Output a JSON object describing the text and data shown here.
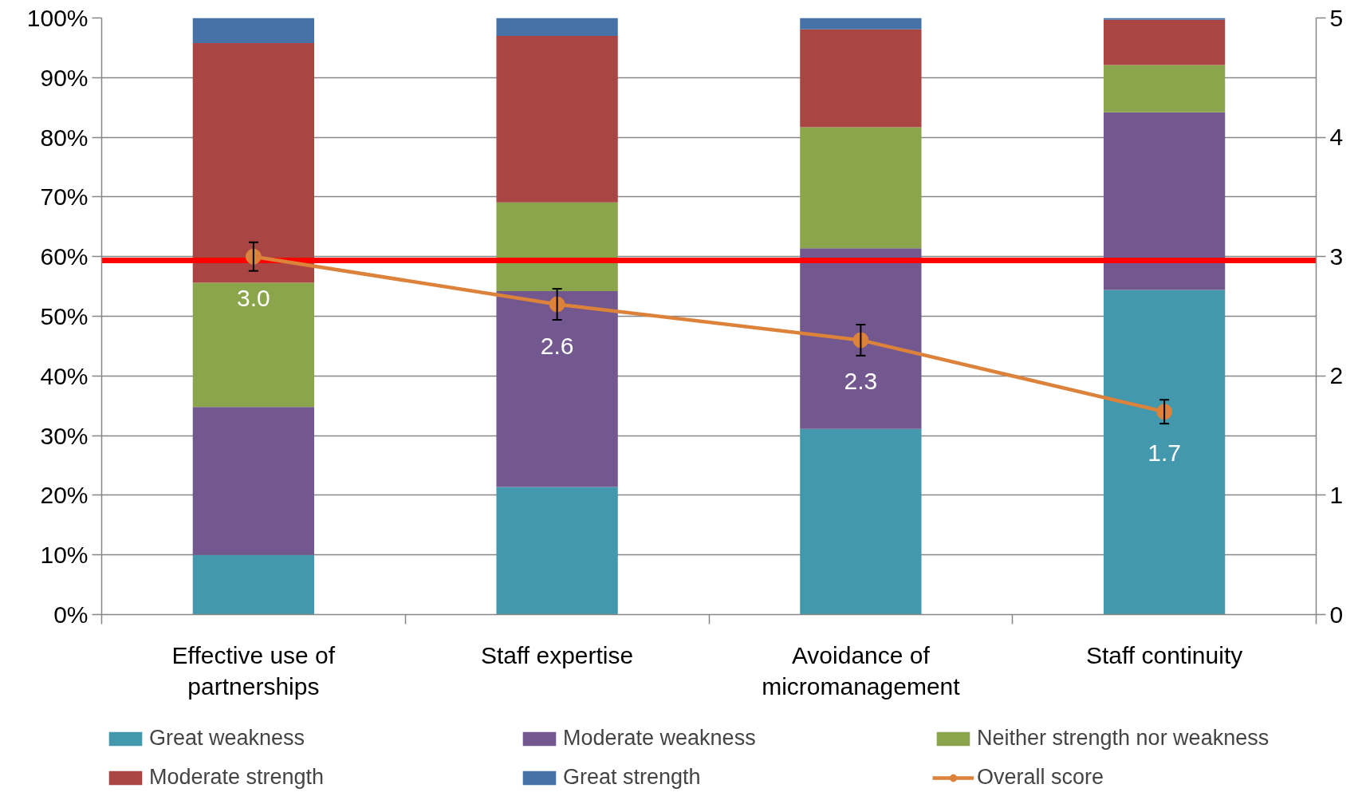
{
  "chart_data": {
    "type": "bar",
    "stacked": true,
    "categories": [
      "Effective use of partnerships",
      "Staff expertise",
      "Avoidance of micromanagement",
      "Staff continuity"
    ],
    "series": [
      {
        "name": "Great weakness",
        "color": "#4398ae",
        "values": [
          10.0,
          21.4,
          31.1,
          54.4
        ]
      },
      {
        "name": "Moderate weakness",
        "color": "#72588e",
        "values": [
          24.8,
          32.8,
          30.3,
          29.8
        ]
      },
      {
        "name": "Neither strength nor weakness",
        "color": "#8aa54c",
        "values": [
          20.8,
          14.9,
          20.3,
          7.9
        ]
      },
      {
        "name": "Moderate strength",
        "color": "#a94644",
        "values": [
          40.2,
          27.9,
          16.4,
          7.6
        ]
      },
      {
        "name": "Great strength",
        "color": "#4672a8",
        "values": [
          4.2,
          3.0,
          1.9,
          0.3
        ]
      },
      {
        "name": "Overall score",
        "type": "line",
        "axis": "y2",
        "color": "#dc823a",
        "marker": "circle",
        "values": [
          3.0,
          2.6,
          2.3,
          1.7
        ],
        "errors": [
          0.12,
          0.13,
          0.13,
          0.1
        ],
        "value_labels": [
          "3.0",
          "2.6",
          "2.3",
          "1.7"
        ]
      }
    ],
    "ylim": [
      0,
      100
    ],
    "yticks": [
      {
        "value": 0,
        "label": "0%"
      },
      {
        "value": 10,
        "label": "10%"
      },
      {
        "value": 20,
        "label": "20%"
      },
      {
        "value": 30,
        "label": "30%"
      },
      {
        "value": 40,
        "label": "40%"
      },
      {
        "value": 50,
        "label": "50%"
      },
      {
        "value": 60,
        "label": "60%"
      },
      {
        "value": 70,
        "label": "70%"
      },
      {
        "value": 80,
        "label": "80%"
      },
      {
        "value": 90,
        "label": "90%"
      },
      {
        "value": 100,
        "label": "100%"
      }
    ],
    "y2lim": [
      0,
      5
    ],
    "y2ticks": [
      0,
      1,
      2,
      3,
      4,
      5
    ],
    "ref_lines": [
      {
        "axis": "y2",
        "value": 2.97,
        "color": "#ff0000"
      }
    ],
    "grid": "y",
    "legend": "bottom"
  }
}
